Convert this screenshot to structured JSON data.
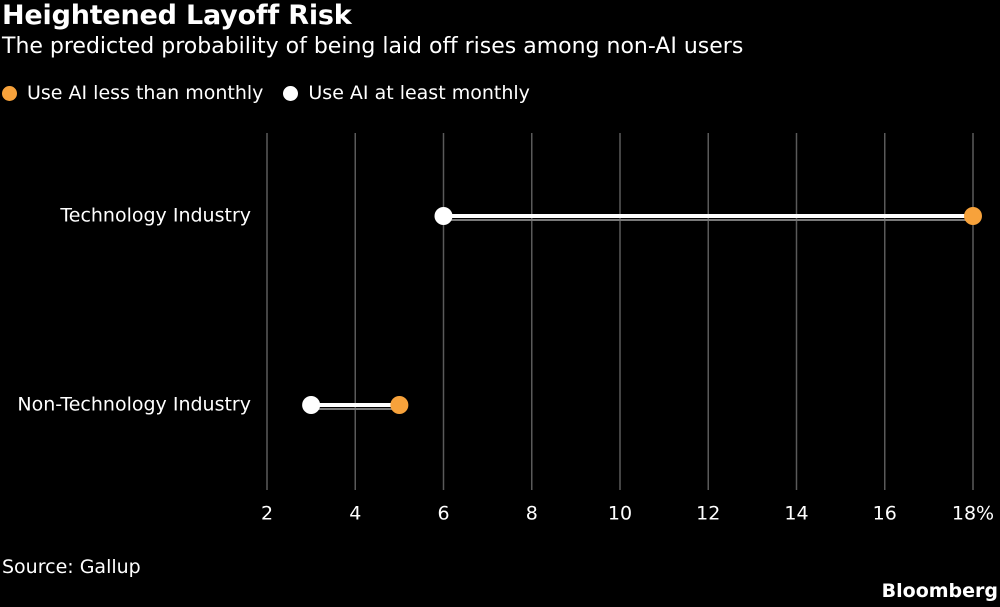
{
  "chart_data": {
    "type": "dumbbell",
    "title": "Heightened Layoff Risk",
    "subtitle": "The predicted probability of being laid off rises among non-AI users",
    "legend_placement": "top-left",
    "series": [
      {
        "name": "Use AI less than monthly",
        "color": "#f7a23b",
        "values": [
          18,
          5
        ]
      },
      {
        "name": "Use AI at least monthly",
        "color": "#ffffff",
        "values": [
          6,
          3
        ]
      }
    ],
    "categories": [
      "Technology Industry",
      "Non-Technology Industry"
    ],
    "xlim": [
      2,
      18
    ],
    "xticks": [
      2,
      4,
      6,
      8,
      10,
      12,
      14,
      16,
      18
    ],
    "xtick_labels": [
      "2",
      "4",
      "6",
      "8",
      "10",
      "12",
      "14",
      "16",
      "18%"
    ],
    "grid": "vertical",
    "source": "Source: Gallup",
    "brand": "Bloomberg"
  }
}
